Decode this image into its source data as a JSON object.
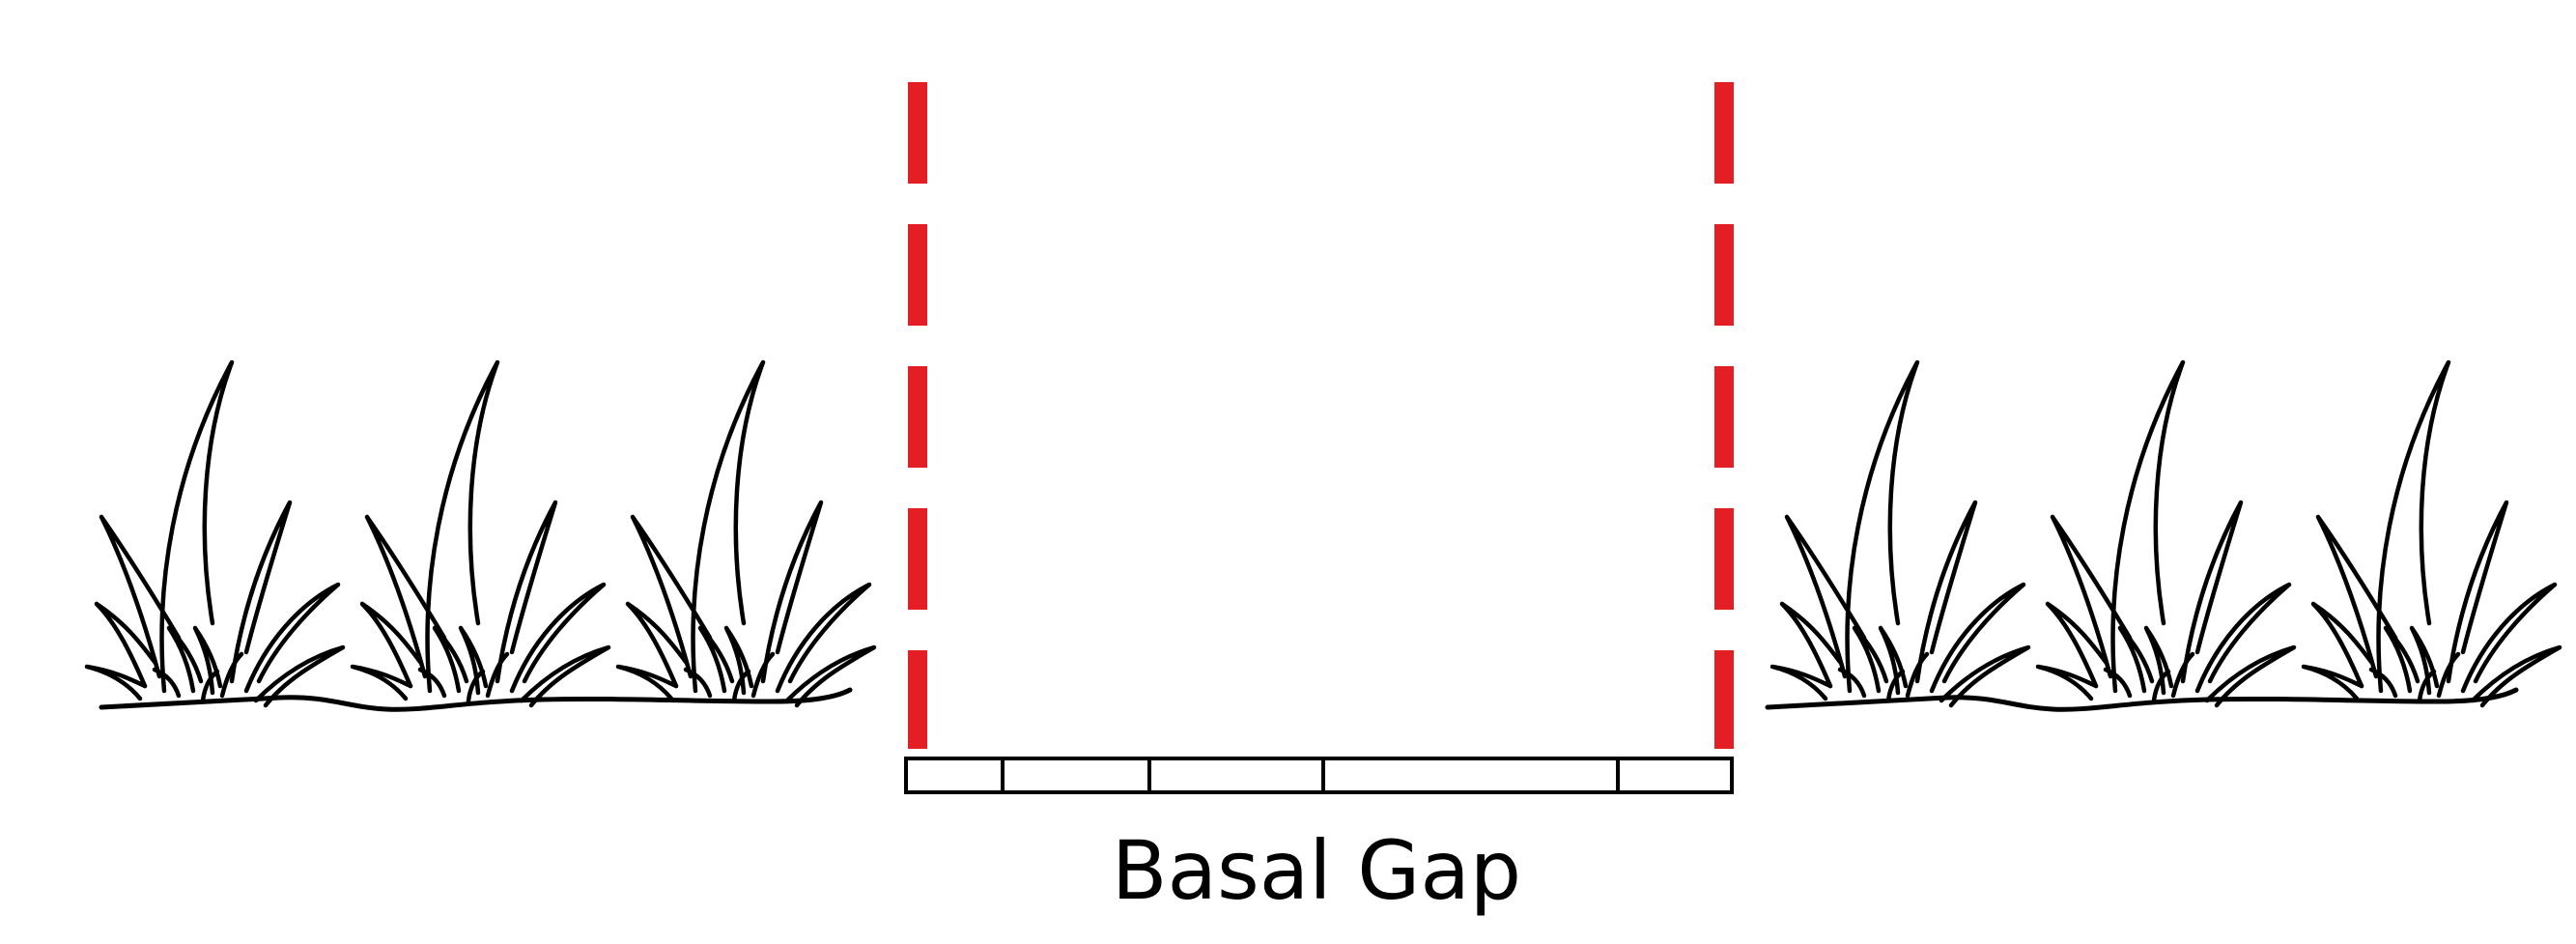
{
  "diagram": {
    "label": "Basal Gap",
    "colors": {
      "boundary": "#e31e24",
      "line": "#000000",
      "background": "#ffffff"
    },
    "left_plants": [
      "grass-clump",
      "grass-clump",
      "grass-clump"
    ],
    "right_plants": [
      "grass-clump",
      "grass-clump",
      "grass-clump"
    ]
  }
}
